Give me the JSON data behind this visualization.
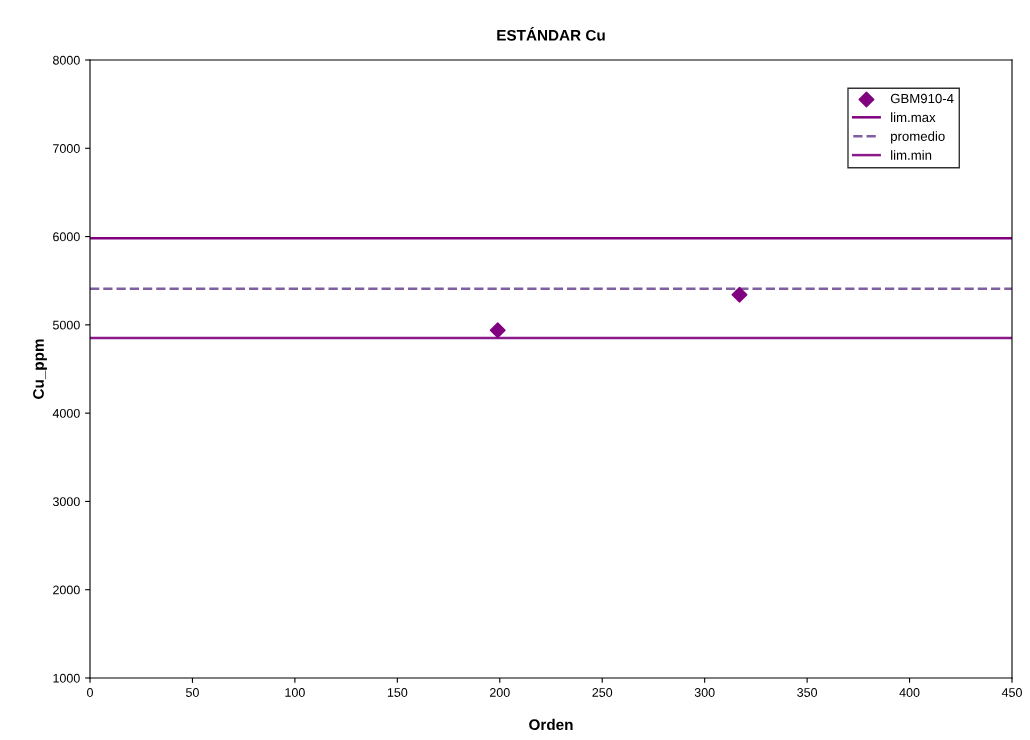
{
  "chart_data": {
    "type": "scatter",
    "title": "ESTÁNDAR Cu",
    "xlabel": "Orden",
    "ylabel": "Cu_ppm",
    "xlim": [
      0,
      450
    ],
    "xticks": [
      0,
      50,
      100,
      150,
      200,
      250,
      300,
      350,
      400,
      450
    ],
    "ylim": [
      1000,
      8000
    ],
    "yticks": [
      1000,
      2000,
      3000,
      4000,
      5000,
      6000,
      7000,
      8000
    ],
    "grid": false,
    "legend": "top right",
    "series": [
      {
        "name": "GBM910-4",
        "marker": "diamond",
        "color": "#800080",
        "x": [
          199,
          317
        ],
        "values": [
          4940,
          5340
        ]
      },
      {
        "name": "lim.max",
        "type": "line",
        "line_style": "solid",
        "color": "#800080",
        "x": [
          0,
          450
        ],
        "values": [
          5980,
          5980
        ]
      },
      {
        "name": "promedio",
        "type": "line",
        "line_style": "dashed",
        "color": "#7f5f9f",
        "x": [
          0,
          450
        ],
        "values": [
          5410,
          5410
        ]
      },
      {
        "name": "lim.min",
        "type": "line",
        "line_style": "solid",
        "color": "#8b1a8b",
        "x": [
          0,
          450
        ],
        "values": [
          4850,
          4850
        ]
      }
    ]
  }
}
